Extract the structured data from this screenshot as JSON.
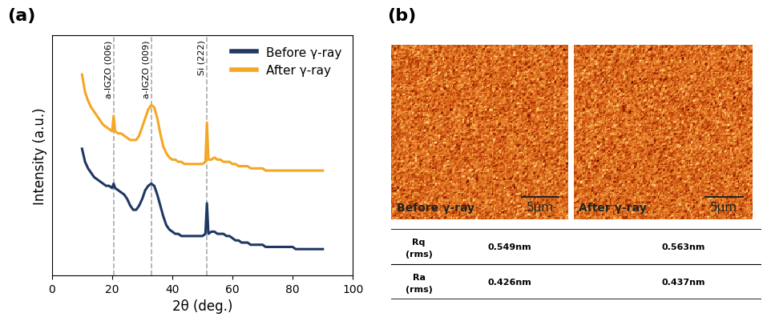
{
  "chart_data": {
    "type": "line",
    "panel_label": "(a)",
    "x_label": "2θ (deg.)",
    "y_label": "Intensity (a.u.)",
    "x": [
      10,
      11,
      12,
      13,
      14,
      15,
      16,
      17,
      18,
      19,
      20,
      20.5,
      21,
      22,
      23,
      24,
      25,
      26,
      27,
      28,
      29,
      30,
      31,
      32,
      33,
      34,
      35,
      36,
      37,
      38,
      39,
      40,
      41,
      42,
      43,
      44,
      45,
      46,
      47,
      48,
      49,
      50,
      51,
      51.5,
      52,
      53,
      54,
      55,
      56,
      57,
      58,
      59,
      60,
      61,
      62,
      63,
      64,
      65,
      66,
      67,
      68,
      69,
      70,
      71,
      72,
      73,
      74,
      75,
      76,
      77,
      78,
      79,
      80,
      81,
      82,
      83,
      84,
      85,
      86,
      87,
      88,
      89,
      90
    ],
    "series": [
      {
        "name": "Before γ-ray",
        "color": "#1f3864",
        "values": [
          58,
          52,
          49,
          47,
          45,
          44,
          43,
          42,
          41,
          41,
          40,
          42,
          40,
          39,
          38,
          37,
          35,
          32,
          30,
          30,
          32,
          35,
          39,
          41,
          42,
          41,
          37,
          32,
          27,
          23,
          21,
          20,
          19,
          19,
          18,
          18,
          18,
          18,
          18,
          18,
          18,
          18,
          19,
          33,
          19,
          20,
          20,
          19,
          19,
          19,
          18,
          18,
          17,
          16,
          16,
          15,
          15,
          15,
          14,
          14,
          14,
          14,
          14,
          13,
          13,
          13,
          13,
          13,
          13,
          13,
          13,
          13,
          13,
          12,
          12,
          12,
          12,
          12,
          12,
          12,
          12,
          12,
          12
        ]
      },
      {
        "name": "After γ-ray",
        "color": "#f5a623",
        "values": [
          92,
          84,
          80,
          77,
          75,
          73,
          71,
          69,
          68,
          67,
          66,
          73,
          66,
          65,
          65,
          64,
          63,
          62,
          62,
          62,
          64,
          68,
          72,
          76,
          78,
          77,
          72,
          65,
          59,
          56,
          54,
          53,
          53,
          52,
          52,
          51,
          51,
          51,
          51,
          51,
          51,
          51,
          52,
          70,
          53,
          53,
          54,
          53,
          53,
          52,
          52,
          52,
          51,
          51,
          50,
          50,
          50,
          50,
          49,
          49,
          49,
          49,
          49,
          48,
          48,
          48,
          48,
          48,
          48,
          48,
          48,
          48,
          48,
          48,
          48,
          48,
          48,
          48,
          48,
          48,
          48,
          48,
          48
        ]
      }
    ],
    "xlim": [
      0,
      100
    ],
    "xticks": [
      0,
      20,
      40,
      60,
      80,
      100
    ],
    "ylim": [
      0,
      110
    ],
    "yticks": [],
    "tick_labels": "x",
    "legend": "upper right",
    "annotations": [
      {
        "x": 20.5,
        "text": "a-IGZO (006)"
      },
      {
        "x": 33,
        "text": "a-IGZO (009)"
      },
      {
        "x": 51.5,
        "text": "Si (222)"
      }
    ]
  },
  "afm": {
    "panel_label": "(b)",
    "images": [
      {
        "label": "Before γ-ray",
        "scale_bar": "5μm"
      },
      {
        "label": "After γ-ray",
        "scale_bar": "5μm"
      }
    ],
    "table": {
      "rows": [
        {
          "name": "Rq",
          "sub": "(rms)",
          "values": [
            "0.549nm",
            "0.563nm"
          ]
        },
        {
          "name": "Ra",
          "sub": "(rms)",
          "values": [
            "0.426nm",
            "0.437nm"
          ]
        }
      ]
    }
  }
}
